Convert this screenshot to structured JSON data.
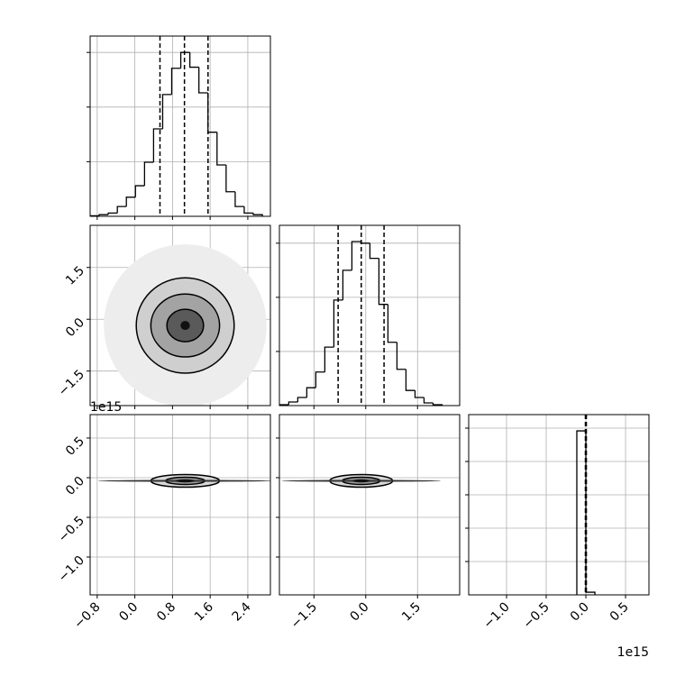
{
  "chart_data": {
    "type": "corner",
    "offset_label": "1e15",
    "parameters": [
      {
        "xlim": [
          -0.95,
          2.88
        ],
        "xticks": [
          {
            "value": -0.8,
            "label": "−0.8"
          },
          {
            "value": 0,
            "label": "0.0"
          },
          {
            "value": 0.8,
            "label": "0.8"
          },
          {
            "value": 1.6,
            "label": "1.6"
          },
          {
            "value": 2.4,
            "label": "2.4"
          }
        ],
        "quantiles": [
          0.534,
          1.054,
          1.555
        ],
        "bins": [
          -0.95,
          -0.757,
          -0.565,
          -0.372,
          -0.18,
          0.013,
          0.206,
          0.398,
          0.591,
          0.783,
          0.976,
          1.169,
          1.361,
          1.554,
          1.746,
          1.939,
          2.132,
          2.324,
          2.517,
          2.709
        ],
        "counts": [
          10,
          30,
          60,
          180,
          350,
          560,
          990,
          1600,
          2230,
          2710,
          3000,
          2730,
          2260,
          1540,
          940,
          450,
          180,
          60,
          30
        ],
        "ylim": [
          0,
          3300
        ],
        "yticks": [
          1000,
          2000,
          3000
        ]
      },
      {
        "xlim": [
          -2.5,
          2.72
        ],
        "xticks": [
          {
            "value": -1.5,
            "label": "−1.5"
          },
          {
            "value": 0,
            "label": "0.0"
          },
          {
            "value": 1.5,
            "label": "1.5"
          }
        ],
        "quantiles": [
          -0.8,
          -0.13,
          0.53
        ],
        "bins": [
          -2.49,
          -2.229,
          -1.968,
          -1.707,
          -1.446,
          -1.185,
          -0.923,
          -0.662,
          -0.401,
          -0.14,
          0.121,
          0.382,
          0.643,
          0.904,
          1.165,
          1.427,
          1.688,
          1.949,
          2.21
        ],
        "counts": [
          17,
          67,
          150,
          330,
          620,
          1080,
          1950,
          2500,
          3030,
          3000,
          2720,
          1870,
          1170,
          670,
          280,
          150,
          50,
          17
        ],
        "ylim": [
          0,
          3330
        ],
        "yticks": [
          1000,
          2000,
          3000
        ]
      },
      {
        "xlim": [
          -1.477,
          0.795
        ],
        "xticks": [
          {
            "value": -1.0,
            "label": "−1.0"
          },
          {
            "value": -0.5,
            "label": "−0.5"
          },
          {
            "value": 0,
            "label": "0.0"
          },
          {
            "value": 0.5,
            "label": "0.5"
          }
        ],
        "quantiles": [
          -0.006,
          0,
          0.006
        ],
        "bins": [
          -0.114,
          0,
          0.114
        ],
        "counts": [
          19670,
          320
        ],
        "ylim": [
          0,
          21620
        ],
        "yticks": [
          4000,
          8000,
          12000,
          16000,
          20000
        ]
      }
    ],
    "pairs": [
      {
        "center": [
          1.07,
          -0.18
        ],
        "levels": [
          {
            "rx": 1.73,
            "ry": 2.35,
            "fill": "#ededed",
            "line": false
          },
          {
            "rx": 1.04,
            "ry": 1.38,
            "fill": "#cfcfcf",
            "line": true
          },
          {
            "rx": 0.73,
            "ry": 0.91,
            "fill": "#a3a3a3",
            "line": true
          },
          {
            "rx": 0.39,
            "ry": 0.47,
            "fill": "#5a5a5a",
            "line": true
          },
          {
            "rx": 0.1,
            "ry": 0.13,
            "fill": "#111111",
            "line": false
          }
        ]
      },
      {
        "center": [
          1.07,
          -0.04
        ],
        "levels": [
          {
            "rx": 0.73,
            "ry": 0.08,
            "fill": "#d8d8d8",
            "line": true
          },
          {
            "rx": 0.42,
            "ry": 0.045,
            "fill": "#999999",
            "line": true
          },
          {
            "rx": 1.85,
            "ry": 0.012,
            "fill": "#333333",
            "line": false
          },
          {
            "rx": 0.2,
            "ry": 0.02,
            "fill": "#111111",
            "line": false
          }
        ]
      },
      {
        "center": [
          -0.13,
          -0.04
        ],
        "levels": [
          {
            "rx": 0.91,
            "ry": 0.08,
            "fill": "#d8d8d8",
            "line": true
          },
          {
            "rx": 0.55,
            "ry": 0.045,
            "fill": "#999999",
            "line": true
          },
          {
            "rx": 2.3,
            "ry": 0.012,
            "fill": "#333333",
            "line": false
          },
          {
            "rx": 0.25,
            "ry": 0.02,
            "fill": "#111111",
            "line": false
          }
        ]
      }
    ]
  }
}
